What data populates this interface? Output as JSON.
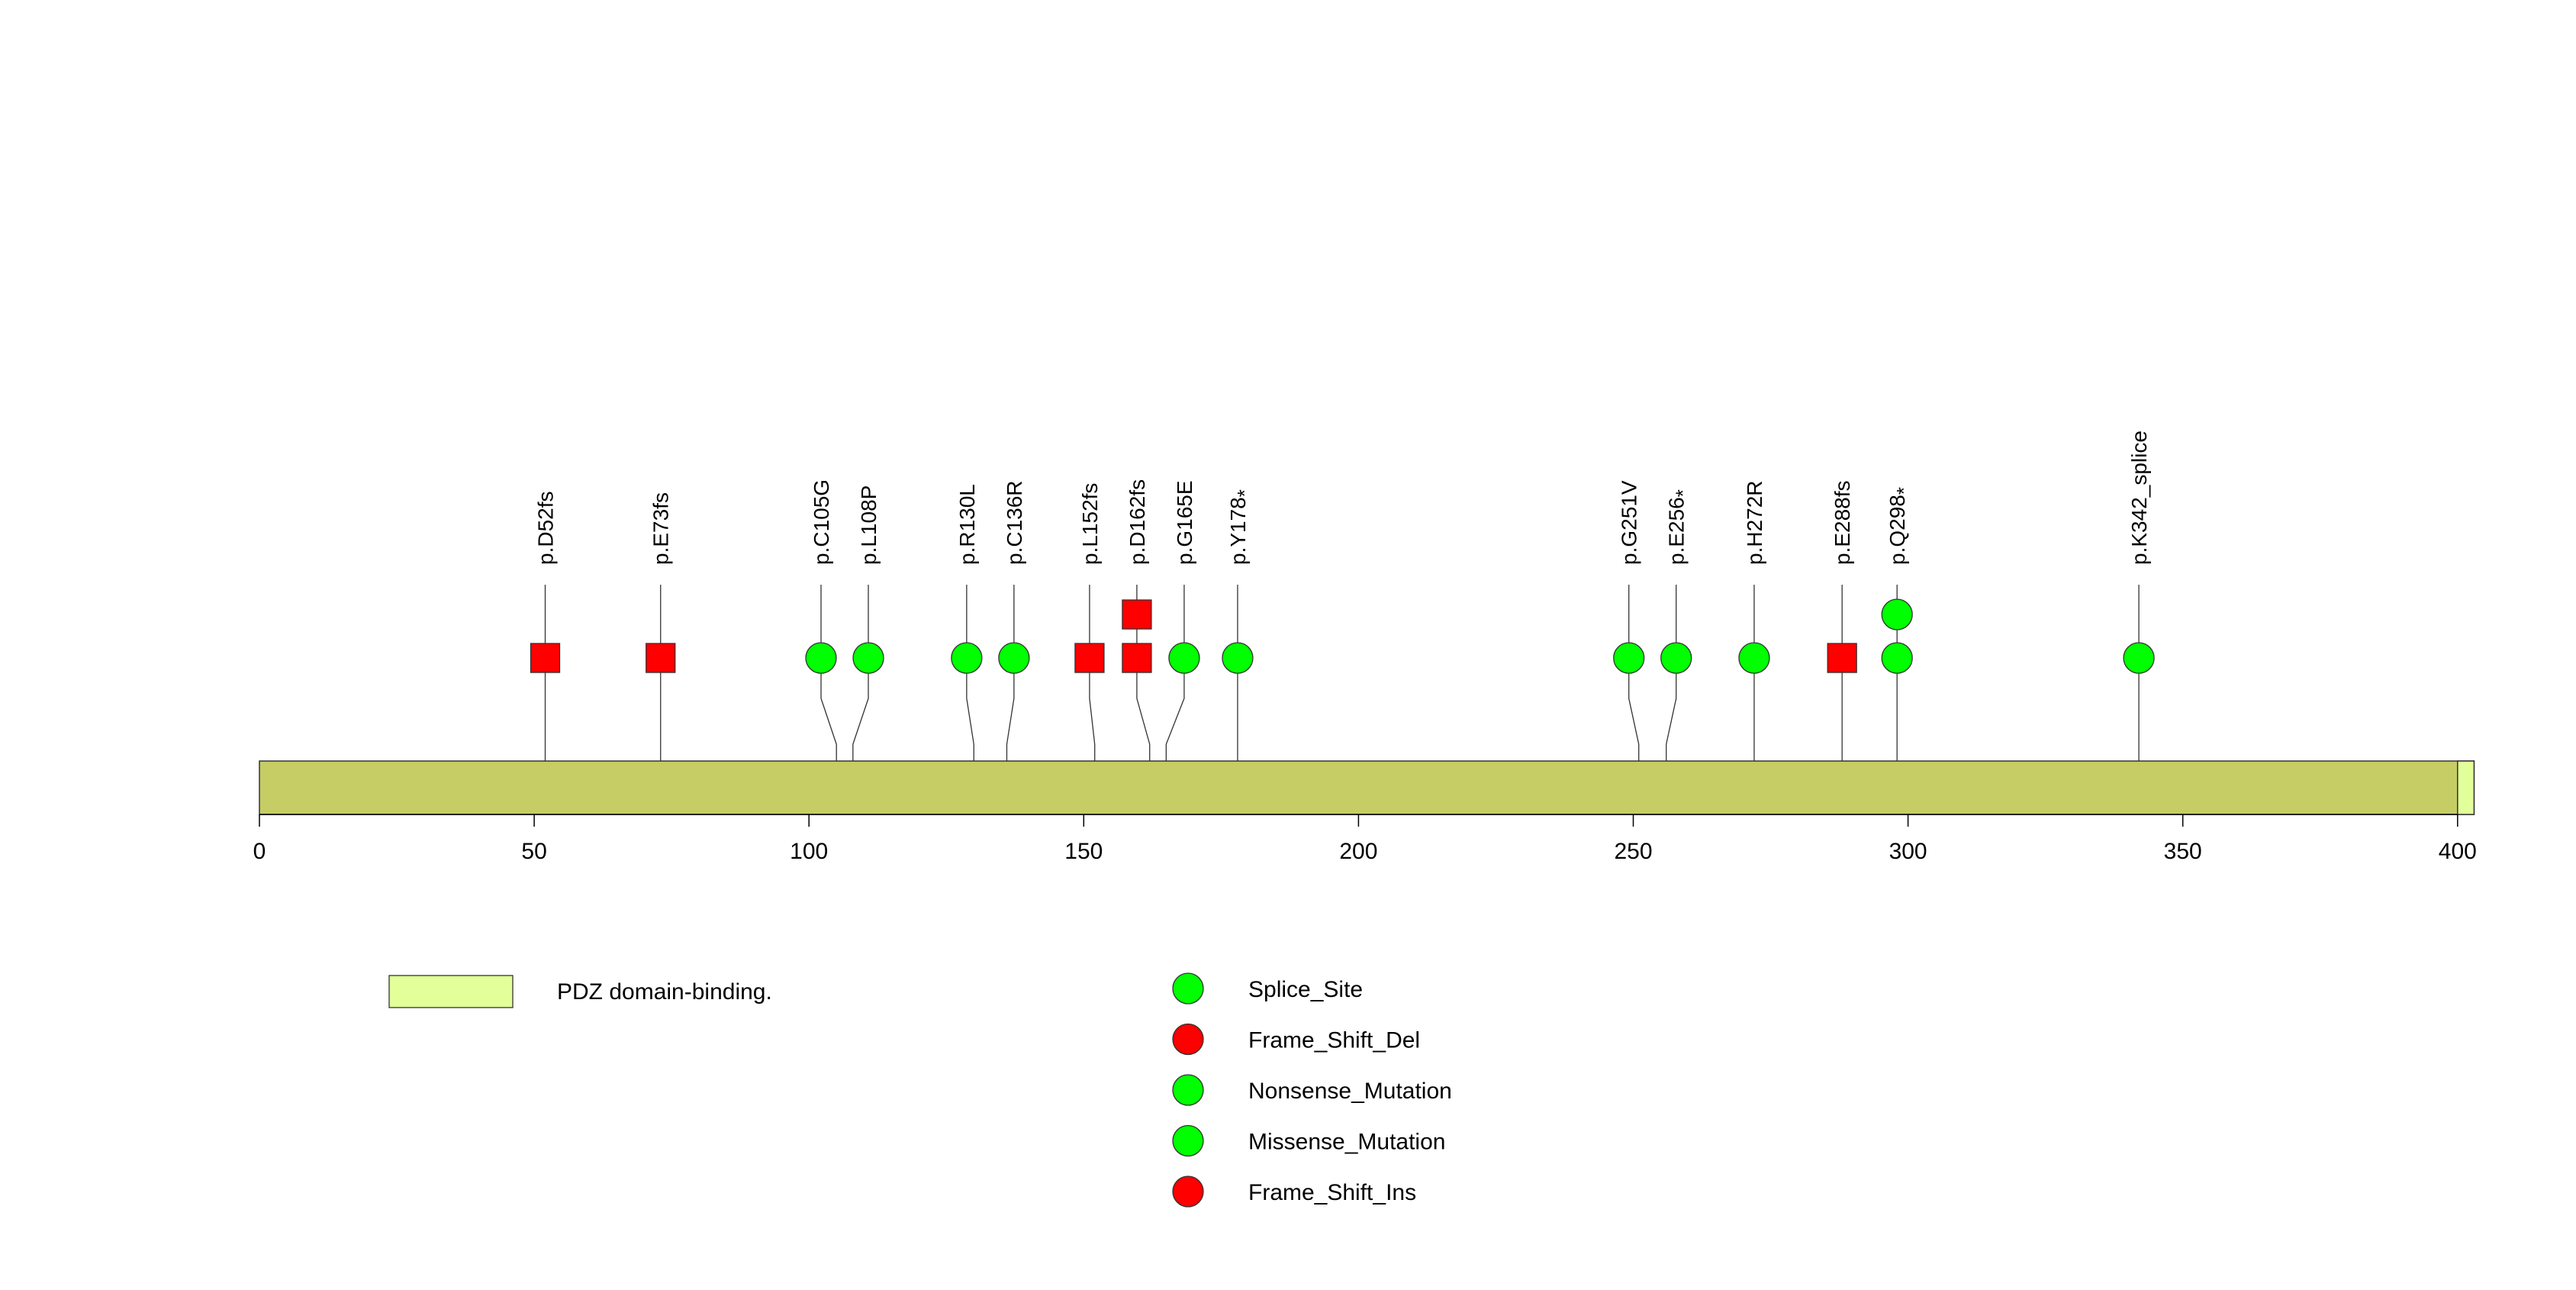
{
  "chart_data": {
    "type": "lollipop",
    "protein_length": 403,
    "x_range": [
      0,
      403
    ],
    "x_ticks": [
      0,
      50,
      100,
      150,
      200,
      250,
      300,
      350,
      400
    ],
    "protein_color": "#c6cd64",
    "domains": [
      {
        "name": "PDZ domain-binding.",
        "start": 400,
        "end": 403,
        "color": "#e2ff99"
      }
    ],
    "mutations": [
      {
        "label": "p.D52fs",
        "pos": 52,
        "type": "Frame_Shift_Del",
        "count": 1
      },
      {
        "label": "p.E73fs",
        "pos": 73,
        "type": "Frame_Shift_Del",
        "count": 1
      },
      {
        "label": "p.C105G",
        "pos": 105,
        "type": "Missense_Mutation",
        "count": 1
      },
      {
        "label": "p.L108P",
        "pos": 108,
        "type": "Missense_Mutation",
        "count": 1
      },
      {
        "label": "p.R130L",
        "pos": 130,
        "type": "Missense_Mutation",
        "count": 1
      },
      {
        "label": "p.C136R",
        "pos": 136,
        "type": "Missense_Mutation",
        "count": 1
      },
      {
        "label": "p.L152fs",
        "pos": 152,
        "type": "Frame_Shift_Del",
        "count": 1
      },
      {
        "label": "p.D162fs",
        "pos": 162,
        "type": "Frame_Shift_Del",
        "count": 2
      },
      {
        "label": "p.G165E",
        "pos": 165,
        "type": "Missense_Mutation",
        "count": 1
      },
      {
        "label": "p.Y178",
        "star": true,
        "pos": 178,
        "type": "Nonsense_Mutation",
        "count": 1
      },
      {
        "label": "p.G251V",
        "pos": 251,
        "type": "Missense_Mutation",
        "count": 1
      },
      {
        "label": "p.E256",
        "star": true,
        "pos": 256,
        "type": "Nonsense_Mutation",
        "count": 1
      },
      {
        "label": "p.H272R",
        "pos": 272,
        "type": "Missense_Mutation",
        "count": 1
      },
      {
        "label": "p.E288fs",
        "pos": 288,
        "type": "Frame_Shift_Ins",
        "count": 1
      },
      {
        "label": "p.Q298",
        "star": true,
        "pos": 298,
        "type": "Nonsense_Mutation",
        "count": 2
      },
      {
        "label": "p.K342_splice",
        "pos": 342,
        "type": "Splice_Site",
        "count": 1
      }
    ],
    "legend": {
      "mutation_types": [
        {
          "name": "Splice_Site",
          "color": "#00ff00"
        },
        {
          "name": "Frame_Shift_Del",
          "color": "#ff0000"
        },
        {
          "name": "Nonsense_Mutation",
          "color": "#00ff00"
        },
        {
          "name": "Missense_Mutation",
          "color": "#00ff00"
        },
        {
          "name": "Frame_Shift_Ins",
          "color": "#ff0000"
        }
      ]
    }
  }
}
